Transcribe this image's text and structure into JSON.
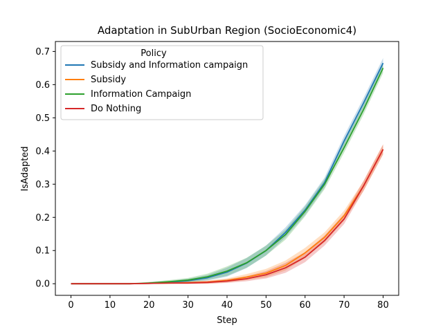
{
  "chart_data": {
    "type": "line",
    "title": "Adaptation in SubUrban Region (SocioEconomic4)",
    "xlabel": "Step",
    "ylabel": "IsAdapted",
    "xlim": [
      -4,
      84
    ],
    "ylim": [
      -0.035,
      0.73
    ],
    "xticks": [
      0,
      10,
      20,
      30,
      40,
      50,
      60,
      70,
      80
    ],
    "yticks": [
      0.0,
      0.1,
      0.2,
      0.3,
      0.4,
      0.5,
      0.6,
      0.7
    ],
    "ytick_labels": [
      "0.0",
      "0.1",
      "0.2",
      "0.3",
      "0.4",
      "0.5",
      "0.6",
      "0.7"
    ],
    "grid": false,
    "legend": {
      "title": "Policy",
      "placement": "top-left"
    },
    "x": [
      0,
      5,
      10,
      15,
      20,
      25,
      30,
      35,
      40,
      45,
      50,
      55,
      60,
      65,
      70,
      75,
      80
    ],
    "series": [
      {
        "name": "Subsidy and Information campaign",
        "color": "#1f77b4",
        "values": [
          0,
          0,
          0,
          0,
          0.001,
          0.004,
          0.009,
          0.018,
          0.035,
          0.062,
          0.1,
          0.155,
          0.222,
          0.305,
          0.43,
          0.545,
          0.665
        ],
        "band": 0.015
      },
      {
        "name": "Subsidy",
        "color": "#ff7f0e",
        "values": [
          0,
          0,
          0,
          0,
          0.001,
          0.002,
          0.003,
          0.005,
          0.01,
          0.02,
          0.032,
          0.055,
          0.093,
          0.14,
          0.205,
          0.295,
          0.405
        ],
        "band": 0.015
      },
      {
        "name": "Information Campaign",
        "color": "#2ca02c",
        "values": [
          0,
          0,
          0,
          0,
          0.002,
          0.006,
          0.011,
          0.021,
          0.038,
          0.063,
          0.1,
          0.148,
          0.218,
          0.3,
          0.41,
          0.525,
          0.65
        ],
        "band": 0.015
      },
      {
        "name": "Do Nothing",
        "color": "#d62728",
        "values": [
          0,
          0,
          0,
          0,
          0.001,
          0.002,
          0.002,
          0.004,
          0.008,
          0.015,
          0.027,
          0.048,
          0.08,
          0.13,
          0.195,
          0.295,
          0.405
        ],
        "band": 0.015
      }
    ]
  }
}
